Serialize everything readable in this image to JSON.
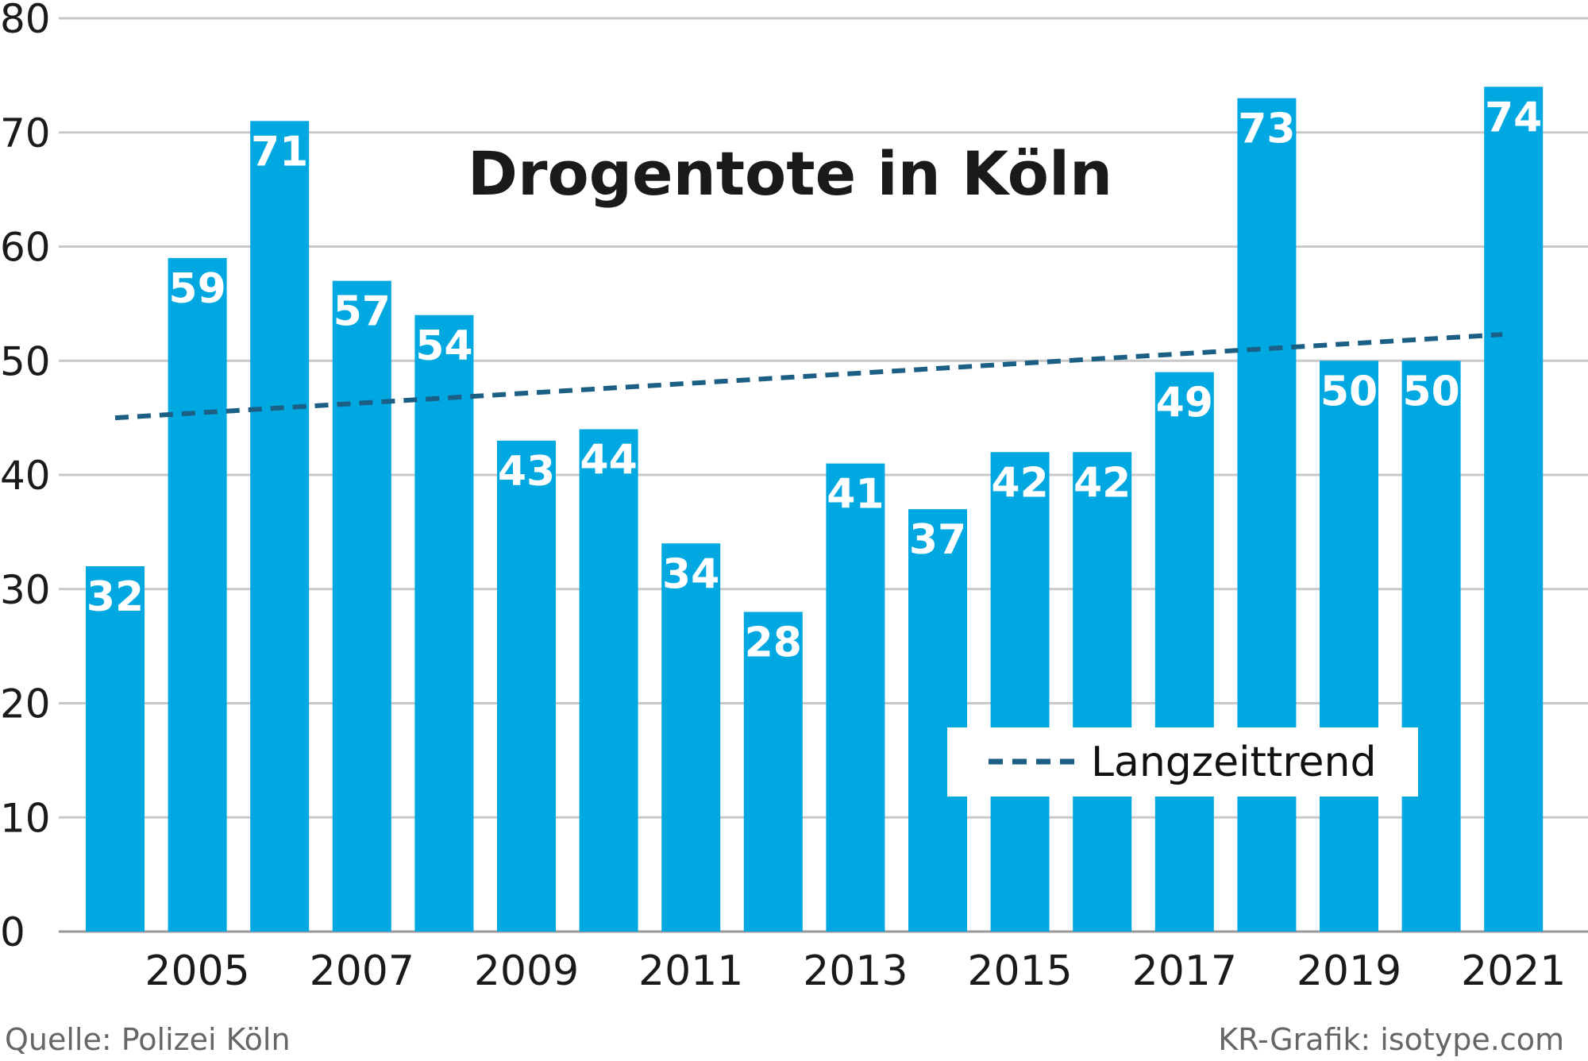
{
  "chart_data": {
    "type": "bar",
    "title": "Drogentote in Köln",
    "categories": [
      "2004",
      "2005",
      "2006",
      "2007",
      "2008",
      "2009",
      "2010",
      "2011",
      "2012",
      "2013",
      "2014",
      "2015",
      "2016",
      "2017",
      "2018",
      "2019",
      "2020",
      "2021"
    ],
    "values": [
      32,
      59,
      71,
      57,
      54,
      43,
      44,
      34,
      28,
      41,
      37,
      42,
      42,
      49,
      73,
      50,
      50,
      74
    ],
    "x_tick_labels": [
      "2005",
      "2007",
      "2009",
      "2011",
      "2013",
      "2015",
      "2017",
      "2019",
      "2021"
    ],
    "y_ticks": [
      0,
      10,
      20,
      30,
      40,
      50,
      60,
      70,
      80
    ],
    "ylim": [
      0,
      80
    ],
    "xlabel": "",
    "ylabel": "",
    "grid": true,
    "trend": {
      "name": "Langzeittrend",
      "start": [
        2004,
        45
      ],
      "end": [
        2021,
        52.3
      ]
    },
    "legend": {
      "position": "bottom-right",
      "entries": [
        "Langzeittrend"
      ]
    },
    "colors": {
      "bar": "#00a8e1",
      "trend": "#1b5f85",
      "grid": "#c8c8c8"
    }
  },
  "footer": {
    "source": "Quelle: Polizei Köln",
    "credit": "KR-Grafik: isotype.com"
  }
}
